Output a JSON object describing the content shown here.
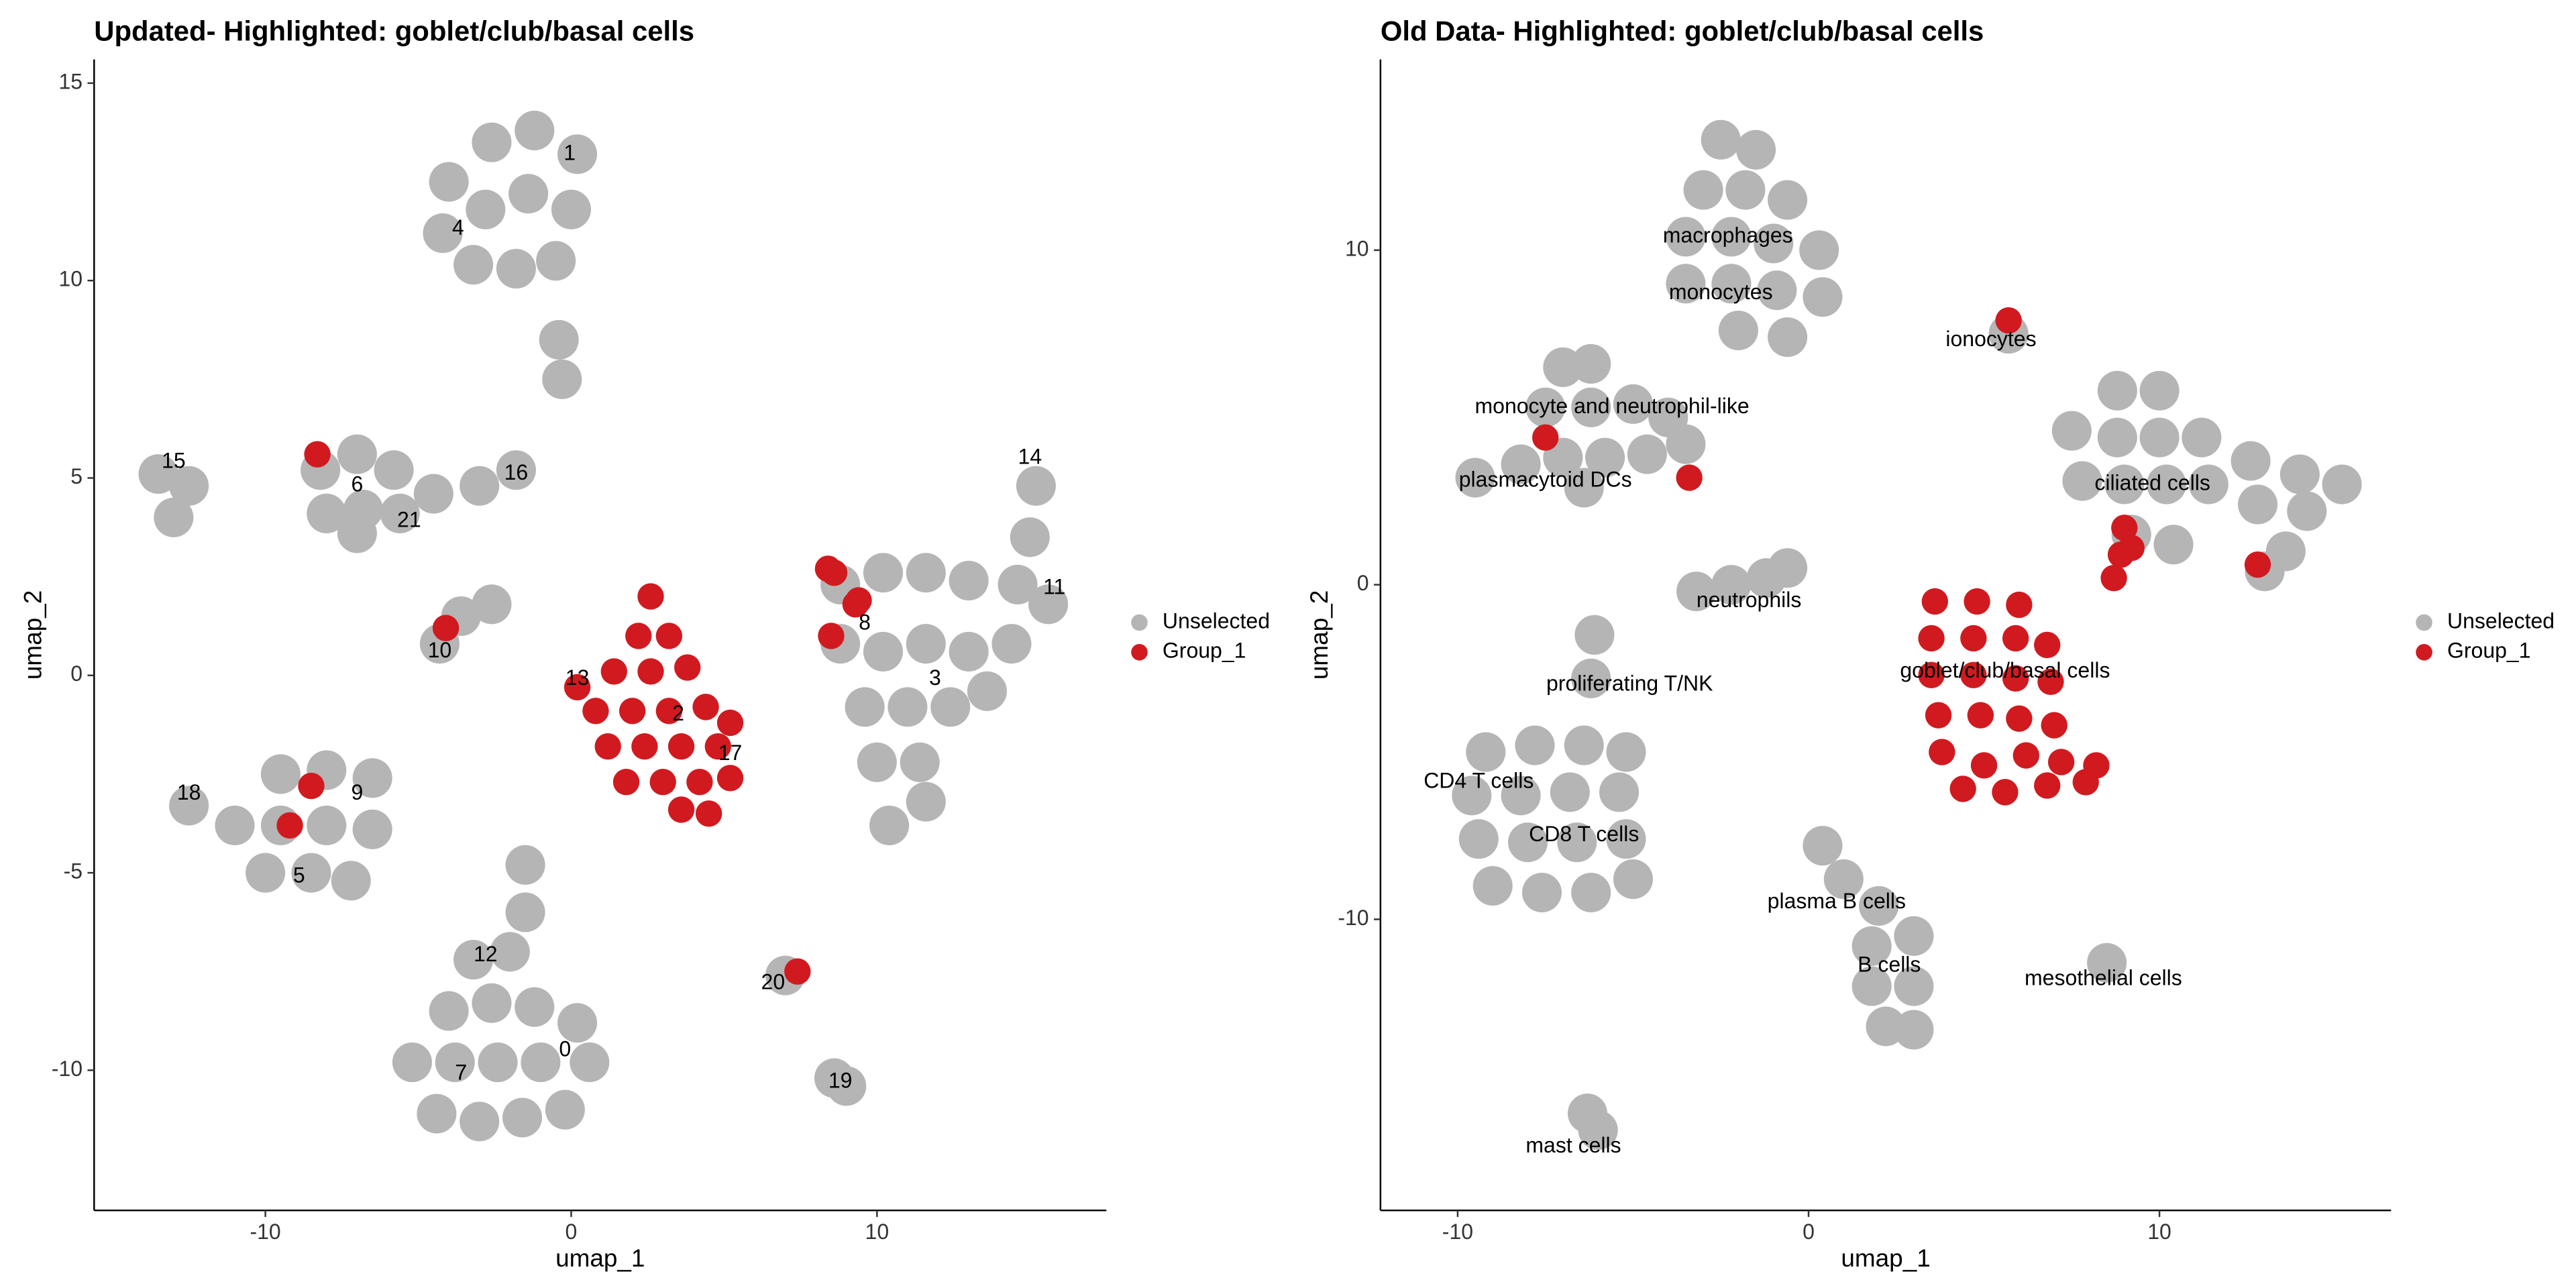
{
  "chart_data": [
    {
      "type": "scatter",
      "title": "Updated- Highlighted: goblet/club/basal cells",
      "xlabel": "umap_1",
      "ylabel": "umap_2",
      "xlim": [
        -15.6,
        17.5
      ],
      "ylim": [
        -13.55,
        15.6
      ],
      "xticks": [
        -10,
        0,
        10
      ],
      "yticks": [
        -10,
        -5,
        0,
        5,
        10,
        15
      ],
      "series": [
        {
          "name": "Unselected",
          "color": "#b5b5b5",
          "x": [
            -4,
            -2.6,
            -1.2,
            0.2,
            -4.2,
            -2.8,
            -1.4,
            0,
            -3.2,
            -1.8,
            -0.5,
            -0.4,
            -0.3,
            -8.2,
            -7,
            -5.8,
            -8,
            -6.8,
            -5.6,
            -7,
            -4.5,
            -3,
            -1.8,
            -13.5,
            -12.5,
            -13,
            -4.3,
            -3.6,
            -2.6,
            -12.5,
            -11,
            -9.5,
            -8,
            -6.5,
            -9.5,
            -8,
            -6.5,
            -10,
            -8.5,
            -7.2,
            -3.2,
            -2,
            -4,
            -2.6,
            -1.2,
            0.2,
            -5.2,
            -3.8,
            -2.4,
            -1,
            0.6,
            -4.4,
            -3,
            -1.6,
            -0.2,
            -1.5,
            -1.5,
            8.8,
            10.2,
            11.6,
            13,
            14.6,
            15.6,
            15.2,
            15,
            8.8,
            10.2,
            11.6,
            13,
            14.4,
            9.6,
            11,
            12.4,
            13.6,
            10,
            11.4,
            10.4,
            11.6,
            7,
            8.6,
            9
          ],
          "y": [
            12.5,
            13.5,
            13.8,
            13.2,
            11.2,
            11.8,
            12.2,
            11.8,
            10.4,
            10.3,
            10.5,
            8.5,
            7.5,
            5.2,
            5.6,
            5.2,
            4.1,
            4.2,
            4.1,
            3.6,
            4.6,
            4.8,
            5.2,
            5.1,
            4.8,
            4,
            0.8,
            1.5,
            1.8,
            -3.3,
            -3.8,
            -2.5,
            -2.4,
            -2.6,
            -3.8,
            -3.8,
            -3.9,
            -5,
            -5,
            -5.2,
            -7.2,
            -7,
            -8.5,
            -8.3,
            -8.4,
            -8.8,
            -9.8,
            -9.8,
            -9.8,
            -9.8,
            -9.8,
            -11.1,
            -11.3,
            -11.2,
            -11,
            -4.8,
            -6,
            2.3,
            2.6,
            2.6,
            2.4,
            2.3,
            1.8,
            4.8,
            3.5,
            0.8,
            0.6,
            0.8,
            0.6,
            0.8,
            -0.8,
            -0.8,
            -0.8,
            -0.4,
            -2.2,
            -2.2,
            -3.8,
            -3.2,
            -7.6,
            -10.2,
            -10.4
          ]
        },
        {
          "name": "Group_1",
          "color": "#d11a1f",
          "x": [
            2.6,
            2.2,
            3.2,
            1.4,
            2.6,
            3.8,
            0.2,
            0.8,
            2,
            3.2,
            4.4,
            1.2,
            2.4,
            3.6,
            4.8,
            5.2,
            1.8,
            3,
            4.2,
            5.2,
            3.6,
            4.5,
            -8.3,
            -4.1,
            -8.5,
            -9.2,
            8.4,
            8.6,
            9.3,
            9.4,
            8.5,
            7.4
          ],
          "y": [
            2,
            1,
            1,
            0.1,
            0.1,
            0.2,
            -0.3,
            -0.9,
            -0.9,
            -0.9,
            -0.8,
            -1.8,
            -1.8,
            -1.8,
            -1.8,
            -1.2,
            -2.7,
            -2.7,
            -2.7,
            -2.6,
            -3.4,
            -3.5,
            5.6,
            1.2,
            -2.8,
            -3.8,
            2.7,
            2.6,
            1.8,
            1.9,
            1,
            -7.5
          ]
        }
      ],
      "annotations": [
        {
          "text": "1",
          "x": -0.05,
          "y": 13.2
        },
        {
          "text": "4",
          "x": -3.7,
          "y": 11.3
        },
        {
          "text": "15",
          "x": -13,
          "y": 5.4
        },
        {
          "text": "6",
          "x": -7,
          "y": 4.8
        },
        {
          "text": "16",
          "x": -1.8,
          "y": 5.1
        },
        {
          "text": "21",
          "x": -5.3,
          "y": 3.9
        },
        {
          "text": "14",
          "x": 15,
          "y": 5.5
        },
        {
          "text": "11",
          "x": 15.8,
          "y": 2.2
        },
        {
          "text": "8",
          "x": 9.6,
          "y": 1.3
        },
        {
          "text": "10",
          "x": -4.3,
          "y": 0.6
        },
        {
          "text": "13",
          "x": 0.2,
          "y": -0.1
        },
        {
          "text": "3",
          "x": 11.9,
          "y": -0.1
        },
        {
          "text": "2",
          "x": 3.5,
          "y": -1
        },
        {
          "text": "17",
          "x": 5.2,
          "y": -2
        },
        {
          "text": "18",
          "x": -12.5,
          "y": -3
        },
        {
          "text": "9",
          "x": -7,
          "y": -3
        },
        {
          "text": "5",
          "x": -8.9,
          "y": -5.1
        },
        {
          "text": "12",
          "x": -2.8,
          "y": -7.1
        },
        {
          "text": "20",
          "x": 6.6,
          "y": -7.8
        },
        {
          "text": "0",
          "x": -0.2,
          "y": -9.5
        },
        {
          "text": "7",
          "x": -3.6,
          "y": -10.1
        },
        {
          "text": "19",
          "x": 8.8,
          "y": -10.3
        }
      ]
    },
    {
      "type": "scatter",
      "title": "Old Data- Highlighted: goblet/club/basal cells",
      "xlabel": "umap_1",
      "ylabel": "umap_2",
      "xlim": [
        -12.2,
        16.6
      ],
      "ylim": [
        -18.7,
        15.7
      ],
      "xticks": [
        -10,
        0,
        10
      ],
      "yticks": [
        -10,
        0,
        10
      ],
      "series": [
        {
          "name": "Unselected",
          "color": "#b5b5b5",
          "x": [
            -2.5,
            -1.5,
            -3,
            -1.8,
            -0.6,
            -3.5,
            -2.2,
            -1,
            0.3,
            -3.5,
            -2.2,
            -0.9,
            0.4,
            -2,
            -0.6,
            -7,
            -6.2,
            -7.5,
            -6.2,
            -5,
            -4,
            -9.5,
            -8.2,
            -7,
            -5.8,
            -4.6,
            -3.5,
            -6.4,
            -3.2,
            -2.2,
            -1.2,
            -0.6,
            -6.1,
            -6.2,
            -9.2,
            -7.8,
            -6.4,
            -5.2,
            -9.6,
            -8.2,
            -6.8,
            -5.4,
            -9.4,
            -8,
            -6.6,
            -5.2,
            -9,
            -7.6,
            -6.2,
            -5,
            -6.3,
            -6,
            0.4,
            1,
            2,
            1.8,
            3,
            1.8,
            3,
            2.2,
            3,
            8.5,
            8.8,
            10,
            7.5,
            8.8,
            10,
            11.2,
            12.6,
            14,
            15.2,
            7.8,
            9,
            10.2,
            11.4,
            12.8,
            14.2,
            9.2,
            10.4,
            13.6,
            13,
            5.7
          ],
          "y": [
            13.3,
            13,
            11.8,
            11.8,
            11.5,
            10.4,
            10.4,
            10.2,
            10,
            9,
            9,
            8.8,
            8.6,
            7.6,
            7.4,
            6.5,
            6.6,
            5.3,
            5.3,
            5.4,
            5,
            3.2,
            3.6,
            3.8,
            3.8,
            3.9,
            4.2,
            2.9,
            -0.2,
            0,
            0.2,
            0.5,
            -1.5,
            -2.8,
            -5,
            -4.8,
            -4.8,
            -5,
            -6.3,
            -6.3,
            -6.2,
            -6.2,
            -7.6,
            -7.7,
            -7.7,
            -7.6,
            -9,
            -9.2,
            -9.2,
            -8.8,
            -15.8,
            -16.3,
            -7.8,
            -8.8,
            -9.6,
            -10.8,
            -10.5,
            -12,
            -12,
            -13.2,
            -13.3,
            -11.3,
            5.8,
            5.8,
            4.6,
            4.4,
            4.4,
            4.4,
            3.7,
            3.3,
            3,
            3.1,
            3,
            3,
            3,
            2.4,
            2.2,
            1.5,
            1.2,
            1,
            0.4,
            7.5
          ]
        },
        {
          "name": "Group_1",
          "color": "#d11a1f",
          "x": [
            3.6,
            4.8,
            6,
            3.5,
            4.7,
            5.9,
            6.8,
            3.5,
            4.7,
            5.9,
            6.9,
            3.7,
            4.9,
            6,
            7,
            3.8,
            5,
            6.2,
            7.2,
            8.2,
            4.4,
            5.6,
            6.8,
            7.9,
            5.7,
            -7.5,
            -3.4,
            9,
            8.9,
            9.2,
            12.8,
            8.7
          ],
          "y": [
            -0.5,
            -0.5,
            -0.6,
            -1.6,
            -1.6,
            -1.6,
            -1.8,
            -2.7,
            -2.7,
            -2.8,
            -2.9,
            -3.9,
            -3.9,
            -4,
            -4.2,
            -5,
            -5.4,
            -5.1,
            -5.3,
            -5.4,
            -6.1,
            -6.2,
            -6,
            -5.9,
            7.9,
            4.4,
            3.2,
            1.7,
            0.9,
            1.1,
            0.6,
            0.2
          ]
        }
      ],
      "annotations": [
        {
          "text": "macrophages",
          "x": -2.3,
          "y": 10.4
        },
        {
          "text": "monocytes",
          "x": -2.5,
          "y": 8.7
        },
        {
          "text": "ionocytes",
          "x": 5.2,
          "y": 7.3
        },
        {
          "text": "monocyte and neutrophil-like",
          "x": -5.6,
          "y": 5.3
        },
        {
          "text": "ciliated cells",
          "x": 9.8,
          "y": 3
        },
        {
          "text": "plasmacytoid DCs",
          "x": -7.5,
          "y": 3.1
        },
        {
          "text": "neutrophils",
          "x": -1.7,
          "y": -0.5
        },
        {
          "text": "goblet/club/basal cells",
          "x": 5.6,
          "y": -2.6
        },
        {
          "text": "proliferating T/NK",
          "x": -5.1,
          "y": -3
        },
        {
          "text": "CD4 T cells",
          "x": -9.4,
          "y": -5.9
        },
        {
          "text": "CD8 T cells",
          "x": -6.4,
          "y": -7.5
        },
        {
          "text": "plasma B cells",
          "x": 0.8,
          "y": -9.5
        },
        {
          "text": "B cells",
          "x": 2.3,
          "y": -11.4
        },
        {
          "text": "mesothelial cells",
          "x": 8.4,
          "y": -11.8
        },
        {
          "text": "mast cells",
          "x": -6.7,
          "y": -16.8
        }
      ]
    }
  ]
}
